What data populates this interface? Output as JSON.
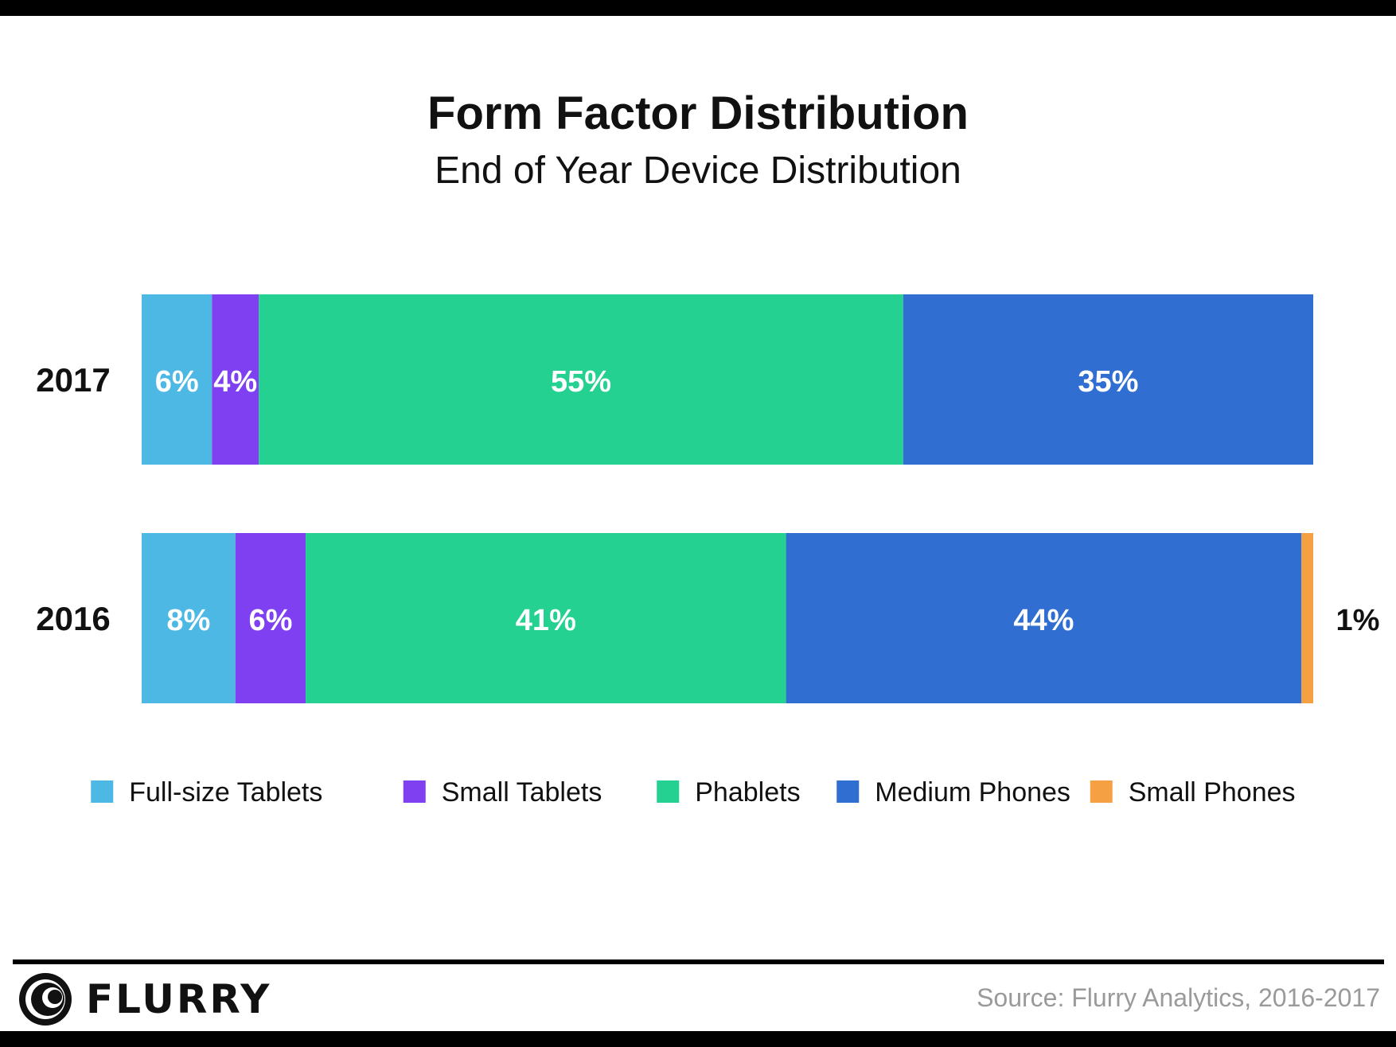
{
  "chart_data": {
    "type": "bar",
    "orientation": "horizontal",
    "stacked": true,
    "title": "Form Factor Distribution",
    "subtitle": "End of Year Device Distribution",
    "categories": [
      "2017",
      "2016"
    ],
    "series": [
      {
        "name": "Full-size Tablets",
        "color": "#4DB8E3",
        "values": [
          6,
          8
        ],
        "labels": [
          "6%",
          "8%"
        ]
      },
      {
        "name": "Small Tablets",
        "color": "#7F40F2",
        "values": [
          4,
          6
        ],
        "labels": [
          "4%",
          "6%"
        ]
      },
      {
        "name": "Phablets",
        "color": "#24D191",
        "values": [
          55,
          41
        ],
        "labels": [
          "55%",
          "41%"
        ]
      },
      {
        "name": "Medium Phones",
        "color": "#306FD1",
        "values": [
          35,
          44
        ],
        "labels": [
          "35%",
          "44%"
        ]
      },
      {
        "name": "Small Phones",
        "color": "#F5A042",
        "values": [
          0,
          1
        ],
        "labels": [
          "",
          "1%"
        ]
      }
    ],
    "xlim": [
      0,
      100
    ],
    "legend": "bottom",
    "grid": false
  },
  "footer": {
    "brand": "FLURRY",
    "source": "Source: Flurry Analytics, 2016-2017"
  }
}
